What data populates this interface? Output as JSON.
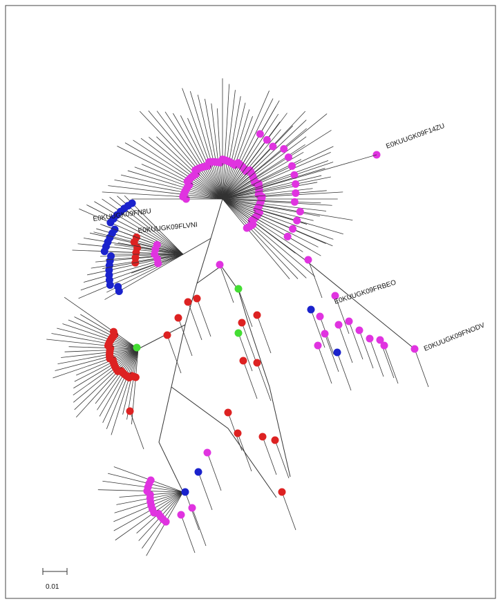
{
  "tree": {
    "leaf_labels": [
      "E0KUUGK09F14ZU",
      "E0KUUGK09FLVNI",
      "E0KUUGK09FN8U",
      "E0KUUGK09FRBEO",
      "E0KUUGK09FNODV"
    ]
  },
  "scale_bar": {
    "label": "0.01"
  }
}
